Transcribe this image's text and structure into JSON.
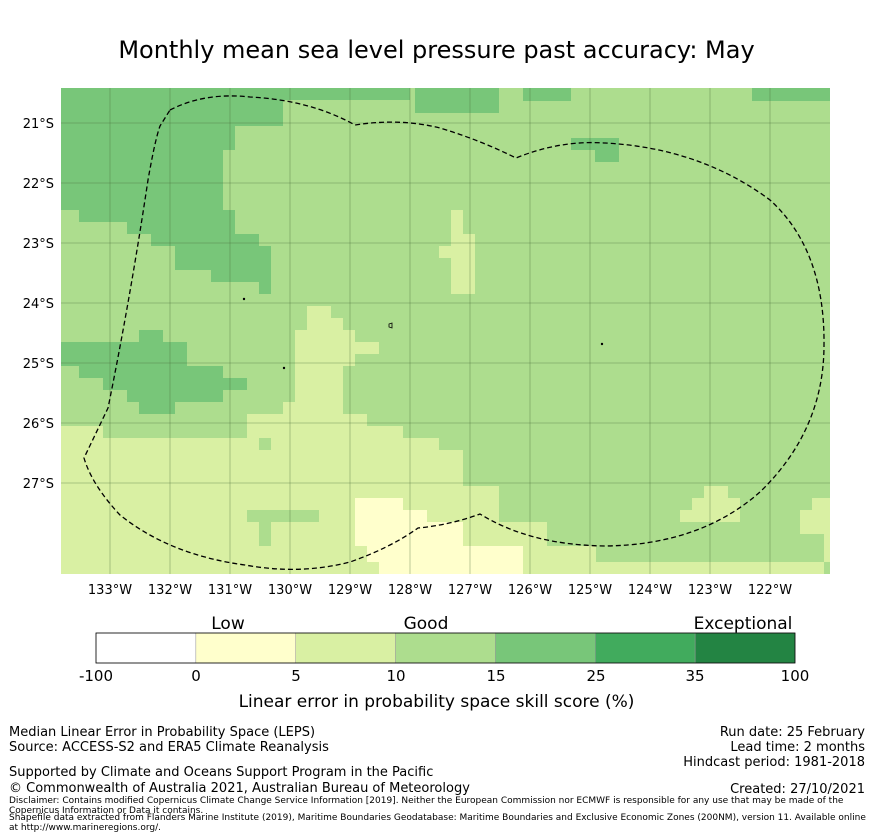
{
  "title": "Monthly mean sea level pressure past accuracy: May",
  "map": {
    "lat_labels": [
      "21°S",
      "22°S",
      "23°S",
      "24°S",
      "25°S",
      "26°S",
      "27°S"
    ],
    "lon_labels": [
      "133°W",
      "132°W",
      "131°W",
      "130°W",
      "129°W",
      "128°W",
      "127°W",
      "126°W",
      "125°W",
      "124°W",
      "123°W",
      "122°W"
    ],
    "boundary_label": "Exclusive Economic Zone (dashed outline)"
  },
  "colorbar": {
    "category_labels": [
      "Low",
      "Good",
      "Exceptional"
    ],
    "tick_labels": [
      "-100",
      "0",
      "5",
      "10",
      "15",
      "25",
      "35",
      "100"
    ],
    "colors": [
      "#ffffff",
      "#ffffcc",
      "#d9f0a3",
      "#addd8e",
      "#78c679",
      "#41ab5d",
      "#238443"
    ],
    "title": "Linear error in probability space skill score (%)"
  },
  "footer": {
    "left1": "Median Linear Error in Probability Space (LEPS)",
    "left2": "Source: ACCESS-S2 and ERA5 Climate Reanalysis",
    "left3": "Supported by Climate and Oceans Support Program in the Pacific",
    "left4": "© Commonwealth of Australia 2021, Australian Bureau of Meteorology",
    "disclaimer1": "Disclaimer: Contains modified Copernicus Climate Change Service Information [2019]. Neither the European Commission nor ECMWF is responsible for any use that may be made of the Copernicus Information or Data it contains.",
    "disclaimer2": "Shapefile data extracted from Flanders Marine Institute (2019), Maritime Boundaries Geodatabase: Maritime Boundaries and Exclusive Economic Zones (200NM), version 11. Available online at http://www.marineregions.org/.",
    "right1": "Run date: 25 February",
    "right2": "Lead time: 2 months",
    "right3": "Hindcast period: 1981-2018",
    "right4": "Created: 27/10/2021"
  }
}
